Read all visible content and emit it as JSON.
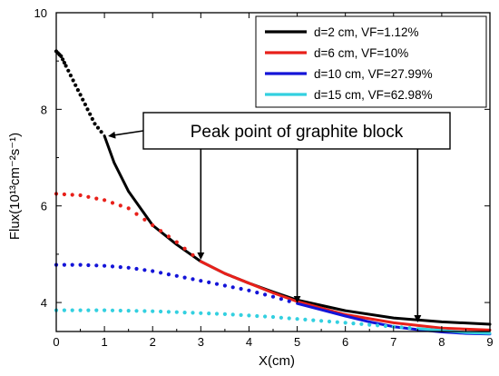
{
  "chart_data": {
    "type": "line",
    "xlabel": "X(cm)",
    "ylabel": "Flux(10¹³cm⁻²s⁻¹)",
    "xlim": [
      0,
      9
    ],
    "ylim": [
      3.4,
      10
    ],
    "xticks": [
      0,
      1,
      2,
      3,
      4,
      5,
      6,
      7,
      8,
      9
    ],
    "yticks": [
      4,
      6,
      8,
      10
    ],
    "grid": false,
    "legend_position": "top-right",
    "annotation": {
      "text": "Peak point of graphite block",
      "arrow_targets": [
        {
          "x": 1.0,
          "y": 7.45
        },
        {
          "x": 3.0,
          "y": 4.85
        },
        {
          "x": 5.0,
          "y": 3.95
        },
        {
          "x": 7.5,
          "y": 3.55
        }
      ]
    },
    "series": [
      {
        "name": "d=2 cm, VF=1.12%",
        "color": "#000000",
        "dotted": [
          [
            0.0,
            9.2
          ],
          [
            0.1,
            9.1
          ],
          [
            0.2,
            8.9
          ],
          [
            0.35,
            8.6
          ],
          [
            0.5,
            8.3
          ],
          [
            0.65,
            8.0
          ],
          [
            0.8,
            7.7
          ],
          [
            1.0,
            7.45
          ]
        ],
        "solid": [
          [
            1.0,
            7.45
          ],
          [
            1.2,
            6.9
          ],
          [
            1.5,
            6.3
          ],
          [
            2.0,
            5.6
          ],
          [
            2.5,
            5.2
          ],
          [
            3.0,
            4.85
          ],
          [
            3.5,
            4.6
          ],
          [
            4.0,
            4.4
          ],
          [
            4.5,
            4.22
          ],
          [
            5.0,
            4.05
          ],
          [
            6.0,
            3.83
          ],
          [
            7.0,
            3.68
          ],
          [
            8.0,
            3.6
          ],
          [
            9.0,
            3.55
          ]
        ]
      },
      {
        "name": "d=6 cm, VF=10%",
        "color": "#e8201a",
        "dotted": [
          [
            0.0,
            6.25
          ],
          [
            0.5,
            6.22
          ],
          [
            1.0,
            6.12
          ],
          [
            1.5,
            5.95
          ],
          [
            2.0,
            5.6
          ],
          [
            2.5,
            5.25
          ],
          [
            3.0,
            4.85
          ]
        ],
        "solid": [
          [
            3.0,
            4.85
          ],
          [
            3.5,
            4.6
          ],
          [
            4.0,
            4.4
          ],
          [
            4.5,
            4.2
          ],
          [
            5.0,
            4.02
          ],
          [
            6.0,
            3.75
          ],
          [
            7.0,
            3.58
          ],
          [
            8.0,
            3.47
          ],
          [
            9.0,
            3.43
          ]
        ]
      },
      {
        "name": "d=10 cm, VF=27.99%",
        "color": "#1414d8",
        "dotted": [
          [
            0.0,
            4.78
          ],
          [
            0.5,
            4.78
          ],
          [
            1.0,
            4.76
          ],
          [
            1.5,
            4.72
          ],
          [
            2.0,
            4.65
          ],
          [
            2.5,
            4.55
          ],
          [
            3.0,
            4.45
          ],
          [
            3.5,
            4.35
          ],
          [
            4.0,
            4.25
          ],
          [
            4.5,
            4.12
          ],
          [
            5.0,
            3.98
          ]
        ],
        "solid": [
          [
            5.0,
            3.98
          ],
          [
            5.5,
            3.85
          ],
          [
            6.0,
            3.72
          ],
          [
            6.5,
            3.6
          ],
          [
            7.0,
            3.5
          ],
          [
            7.5,
            3.44
          ],
          [
            8.0,
            3.39
          ],
          [
            8.5,
            3.36
          ],
          [
            9.0,
            3.35
          ]
        ]
      },
      {
        "name": "d=15 cm, VF=62.98%",
        "color": "#33d0e0",
        "dotted": [
          [
            0.0,
            3.84
          ],
          [
            0.5,
            3.84
          ],
          [
            1.0,
            3.84
          ],
          [
            1.5,
            3.83
          ],
          [
            2.0,
            3.82
          ],
          [
            2.5,
            3.8
          ],
          [
            3.0,
            3.78
          ],
          [
            3.5,
            3.76
          ],
          [
            4.0,
            3.73
          ],
          [
            4.5,
            3.7
          ],
          [
            5.0,
            3.66
          ],
          [
            5.5,
            3.62
          ],
          [
            6.0,
            3.58
          ],
          [
            6.5,
            3.54
          ],
          [
            7.0,
            3.5
          ],
          [
            7.5,
            3.46
          ]
        ],
        "solid": [
          [
            7.5,
            3.46
          ],
          [
            8.0,
            3.42
          ],
          [
            8.5,
            3.38
          ],
          [
            9.0,
            3.36
          ]
        ]
      }
    ]
  }
}
